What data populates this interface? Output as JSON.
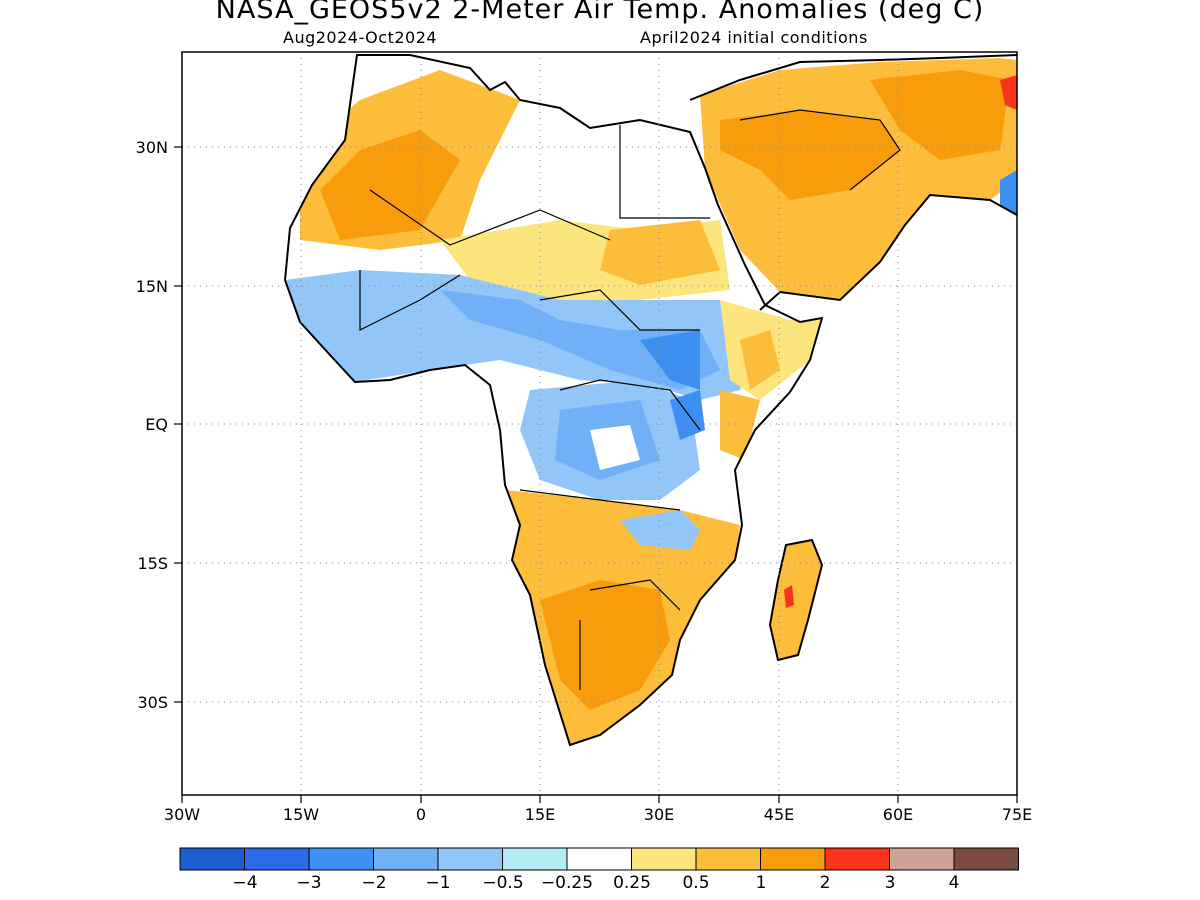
{
  "title": "NASA_GEOS5v2 2-Meter Air Temp. Anomalies (deg C)",
  "subtitle_left": "Aug2024-Oct2024",
  "subtitle_right": "April2024 initial conditions",
  "axes": {
    "lat_labels": [
      "30N",
      "15N",
      "EQ",
      "15S",
      "30S"
    ],
    "lat_values": [
      30,
      15,
      0,
      -15,
      -30
    ],
    "lon_labels": [
      "30W",
      "15W",
      "0",
      "15E",
      "30E",
      "45E",
      "60E",
      "75E"
    ],
    "lon_values": [
      -30,
      -15,
      0,
      15,
      30,
      45,
      60,
      75
    ],
    "lat_range": [
      -40,
      40
    ],
    "lon_range": [
      -30,
      75
    ],
    "grid": "dotted"
  },
  "colorbar": {
    "colors": [
      "#1a5ecf",
      "#2b6ae8",
      "#3d8ff2",
      "#6fb0f6",
      "#93c6f8",
      "#b3ecf6",
      "#ffffff",
      "#fde57e",
      "#fbbd3a",
      "#f99c0c",
      "#f9341a",
      "#cda395",
      "#7a4c3e"
    ],
    "labels": [
      "-4",
      "-3",
      "-2",
      "-1",
      "-0.5",
      "-0.25",
      "0.25",
      "0.5",
      "1",
      "2",
      "3",
      "4"
    ]
  }
}
